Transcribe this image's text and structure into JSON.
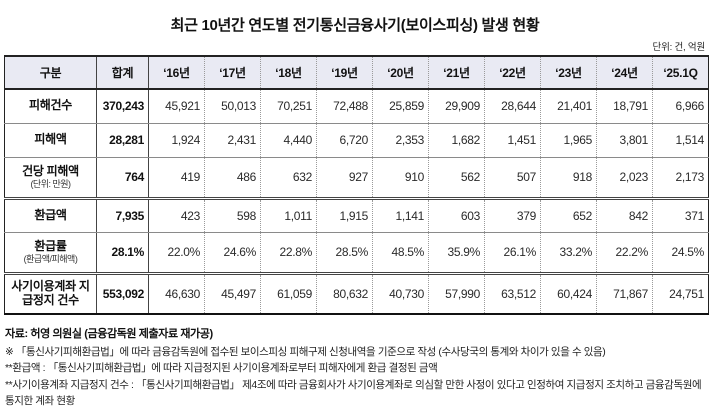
{
  "title": "최근 10년간 연도별 전기통신금융사기(보이스피싱) 발생 현황",
  "unit_note": "단위: 건, 억원",
  "table": {
    "columns": [
      "구분",
      "합계",
      "‘16년",
      "‘17년",
      "‘18년",
      "‘19년",
      "‘20년",
      "‘21년",
      "‘22년",
      "‘23년",
      "‘24년",
      "‘25.1Q"
    ],
    "rows": [
      {
        "label": "피해건수",
        "sublabel": "",
        "values": [
          "370,243",
          "45,921",
          "50,013",
          "70,251",
          "72,488",
          "25,859",
          "29,909",
          "28,644",
          "21,401",
          "18,791",
          "6,966"
        ]
      },
      {
        "label": "피해액",
        "sublabel": "",
        "values": [
          "28,281",
          "1,924",
          "2,431",
          "4,440",
          "6,720",
          "2,353",
          "1,682",
          "1,451",
          "1,965",
          "3,801",
          "1,514"
        ]
      },
      {
        "label": "건당 피해액",
        "sublabel": "(단위: 만원)",
        "values": [
          "764",
          "419",
          "486",
          "632",
          "927",
          "910",
          "562",
          "507",
          "918",
          "2,023",
          "2,173"
        ]
      },
      {
        "label": "환급액",
        "sublabel": "",
        "values": [
          "7,935",
          "423",
          "598",
          "1,011",
          "1,915",
          "1,141",
          "603",
          "379",
          "652",
          "842",
          "371"
        ]
      },
      {
        "label": "환급률",
        "sublabel": "(환급액/피해액)",
        "values": [
          "28.1%",
          "22.0%",
          "24.6%",
          "22.8%",
          "28.5%",
          "48.5%",
          "35.9%",
          "26.1%",
          "33.2%",
          "22.2%",
          "24.5%"
        ]
      },
      {
        "label": "사기이용계좌 지급정지 건수",
        "sublabel": "",
        "values": [
          "553,092",
          "46,630",
          "45,497",
          "61,059",
          "80,632",
          "40,730",
          "57,990",
          "63,512",
          "60,424",
          "71,867",
          "24,751"
        ]
      }
    ]
  },
  "footnotes": {
    "source": "자료: 허영 의원실 (금융감독원 제출자료 재가공)",
    "notes": [
      "※ 「통신사기피해환급법」에 따라 금융감독원에 접수된 보이스피싱 피해구제 신청내역을 기준으로 작성 (수사당국의 통계와 차이가 있을 수 있음)",
      "**환급액 : 「통신사기피해환급법」에 따라 지급정지된 사기이용계좌로부터 피해자에게 환급 결정된 금액",
      "**사기이용계좌 지급정지 건수 : 「통신사기피해환급법」 제4조에 따라 금융회사가 사기이용계좌로 의심할 만한 사정이 있다고 인정하여 지급정지 조치하고 금융감독원에 통지한 계좌 현황"
    ]
  }
}
